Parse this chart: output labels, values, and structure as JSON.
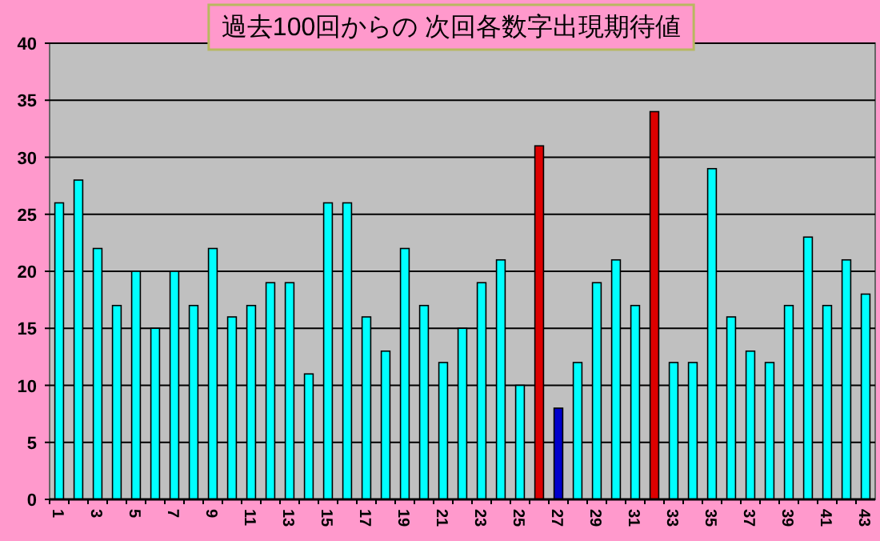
{
  "chart_data": {
    "type": "bar",
    "title": "過去100回からの 次回各数字出現期待値",
    "categories": [
      "1",
      null,
      "3",
      null,
      "5",
      null,
      "7",
      null,
      "9",
      null,
      "11",
      null,
      "13",
      null,
      "15",
      null,
      "17",
      null,
      "19",
      null,
      "21",
      null,
      "23",
      null,
      "25",
      null,
      "27",
      null,
      "29",
      null,
      "31",
      null,
      "33",
      null,
      "35",
      null,
      "37",
      null,
      "39",
      null,
      "41",
      null,
      "43"
    ],
    "values": [
      26,
      28,
      22,
      17,
      20,
      15,
      20,
      17,
      22,
      16,
      17,
      19,
      19,
      11,
      26,
      26,
      16,
      13,
      22,
      17,
      12,
      15,
      19,
      21,
      10,
      31,
      8,
      12,
      19,
      21,
      17,
      34,
      12,
      12,
      29,
      16,
      13,
      12,
      17,
      23,
      17,
      21,
      18
    ],
    "colors": [
      "#00ffff",
      "#00ffff",
      "#00ffff",
      "#00ffff",
      "#00ffff",
      "#00ffff",
      "#00ffff",
      "#00ffff",
      "#00ffff",
      "#00ffff",
      "#00ffff",
      "#00ffff",
      "#00ffff",
      "#00ffff",
      "#00ffff",
      "#00ffff",
      "#00ffff",
      "#00ffff",
      "#00ffff",
      "#00ffff",
      "#00ffff",
      "#00ffff",
      "#00ffff",
      "#00ffff",
      "#00ffff",
      "#dd0000",
      "#0000cc",
      "#00ffff",
      "#00ffff",
      "#00ffff",
      "#00ffff",
      "#dd0000",
      "#00ffff",
      "#00ffff",
      "#00ffff",
      "#00ffff",
      "#00ffff",
      "#00ffff",
      "#00ffff",
      "#00ffff",
      "#00ffff",
      "#00ffff",
      "#00ffff"
    ],
    "ylim": [
      0,
      40
    ],
    "yticks": [
      0,
      5,
      10,
      15,
      20,
      25,
      30,
      35,
      40
    ],
    "grid": "y"
  }
}
